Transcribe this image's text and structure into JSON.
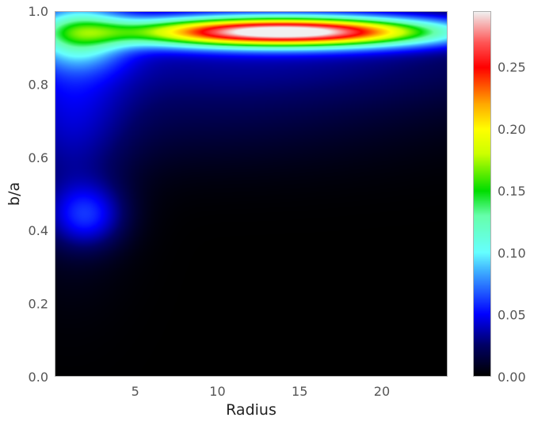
{
  "chart_data": {
    "type": "heatmap",
    "title": "",
    "xlabel": "Radius",
    "ylabel": "b/a",
    "xlim": [
      0.1,
      24
    ],
    "ylim": [
      0.0,
      1.0
    ],
    "x_ticks": [
      5,
      10,
      15,
      20
    ],
    "x_tick_labels": [
      "5",
      "10",
      "15",
      "20"
    ],
    "y_ticks": [
      0.0,
      0.2,
      0.4,
      0.6,
      0.8,
      1.0
    ],
    "y_tick_labels": [
      "0.0",
      "0.2",
      "0.4",
      "0.6",
      "0.8",
      "1.0"
    ],
    "colorbar": {
      "range": [
        0.0,
        0.295
      ],
      "ticks": [
        0.0,
        0.05,
        0.1,
        0.15,
        0.2,
        0.25
      ],
      "tick_labels": [
        "0.00",
        "0.05",
        "0.10",
        "0.15",
        "0.20",
        "0.25"
      ],
      "colormap": "gist_ncar-like (black-blue-cyan-green-yellow-red-white)"
    },
    "grid": false,
    "density_components": [
      {
        "x_center": 14,
        "y_center": 0.945,
        "x_sigma": 6.5,
        "y_sigma": 0.028,
        "amplitude": 0.29
      },
      {
        "x_center": 1.5,
        "y_center": 0.94,
        "x_sigma": 2.0,
        "y_sigma": 0.06,
        "amplitude": 0.08
      },
      {
        "x_center": 12,
        "y_center": 0.9,
        "x_sigma": 14,
        "y_sigma": 0.12,
        "amplitude": 0.035
      },
      {
        "x_center": 2.0,
        "y_center": 0.44,
        "x_sigma": 1.6,
        "y_sigma": 0.06,
        "amplitude": 0.045
      },
      {
        "x_center": 1.0,
        "y_center": 0.72,
        "x_sigma": 2.5,
        "y_sigma": 0.25,
        "amplitude": 0.03
      },
      {
        "x_center": 8,
        "y_center": 0.68,
        "x_sigma": 10,
        "y_sigma": 0.1,
        "amplitude": 0.01
      }
    ],
    "colormap_stops": [
      {
        "v": 0.0,
        "color": "#000000"
      },
      {
        "v": 0.025,
        "color": "#000066"
      },
      {
        "v": 0.05,
        "color": "#0000ff"
      },
      {
        "v": 0.085,
        "color": "#3fb0ff"
      },
      {
        "v": 0.1,
        "color": "#66ffff"
      },
      {
        "v": 0.13,
        "color": "#66ffaa"
      },
      {
        "v": 0.15,
        "color": "#00dd00"
      },
      {
        "v": 0.18,
        "color": "#ccff00"
      },
      {
        "v": 0.2,
        "color": "#ffff00"
      },
      {
        "v": 0.22,
        "color": "#ffaa00"
      },
      {
        "v": 0.25,
        "color": "#ff0000"
      },
      {
        "v": 0.27,
        "color": "#ff5555"
      },
      {
        "v": 0.295,
        "color": "#f0f0f0"
      }
    ]
  }
}
